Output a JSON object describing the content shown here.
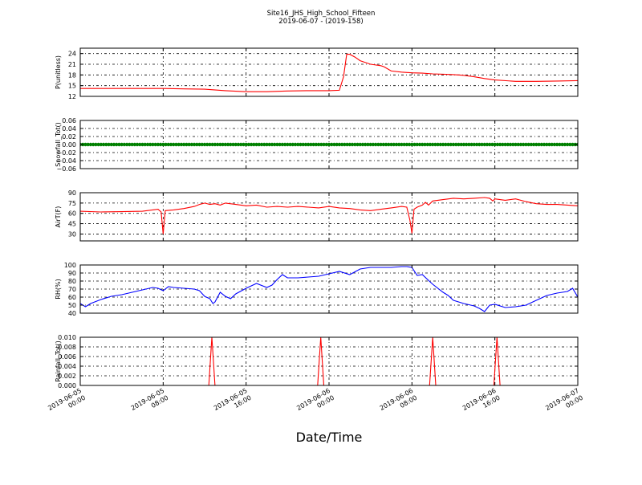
{
  "figure": {
    "title": "Site16_JHS_High_School_Fifteen",
    "subtitle": "2019-06-07 - (2019-158)",
    "xlabel": "Date/Time",
    "x_ticks": [
      [
        "2019-06-05",
        "00:00"
      ],
      [
        "2019-06-05",
        "08:00"
      ],
      [
        "2019-06-05",
        "16:00"
      ],
      [
        "2019-06-06",
        "00:00"
      ],
      [
        "2019-06-06",
        "08:00"
      ],
      [
        "2019-06-06",
        "16:00"
      ],
      [
        "2019-06-07",
        "00:00"
      ]
    ],
    "x_range_hours": [
      0,
      48
    ]
  },
  "chart_data": [
    {
      "type": "line",
      "ylabel": "P(unitless)",
      "ylim": [
        12,
        25.5
      ],
      "yticks": [
        12,
        15,
        18,
        21,
        24
      ],
      "ytick_labels": [
        "12",
        "15",
        "18",
        "21",
        "24"
      ],
      "grid": true,
      "series": [
        {
          "color": "#ff0000",
          "x": [
            0,
            8,
            10,
            12,
            14,
            16,
            18,
            20,
            22,
            24,
            25,
            25.4,
            25.7,
            26,
            26.5,
            27,
            28,
            29,
            29.3,
            30,
            31,
            32,
            33,
            34,
            35,
            36,
            37,
            38,
            39,
            40,
            42,
            44,
            46,
            48
          ],
          "y": [
            14.2,
            14.2,
            14.1,
            14.0,
            13.6,
            13.3,
            13.3,
            13.5,
            13.6,
            13.6,
            13.7,
            17.5,
            23.8,
            23.8,
            23.0,
            22.0,
            21.0,
            20.6,
            20.3,
            19.1,
            18.8,
            18.6,
            18.5,
            18.3,
            18.2,
            18.1,
            17.9,
            17.5,
            17.0,
            16.6,
            16.2,
            16.2,
            16.3,
            16.4
          ]
        }
      ]
    },
    {
      "type": "scatter",
      "ylabel": "Snowfall_Tot()",
      "ylim": [
        -0.06,
        0.06
      ],
      "yticks": [
        -0.06,
        -0.04,
        -0.02,
        0.0,
        0.02,
        0.04,
        0.06
      ],
      "ytick_labels": [
        "−0.06",
        "−0.04",
        "−0.02",
        "0.00",
        "0.02",
        "0.04",
        "0.06"
      ],
      "grid": true,
      "series": [
        {
          "color": "#008000",
          "x_start": 0,
          "x_end": 48,
          "x_step": 0.25,
          "constant_value": 0.0
        }
      ]
    },
    {
      "type": "line",
      "ylabel": "AirT(F)",
      "ylim": [
        20,
        90
      ],
      "yticks": [
        30,
        45,
        60,
        75,
        90
      ],
      "ytick_labels": [
        "30",
        "45",
        "60",
        "75",
        "90"
      ],
      "grid": true,
      "series": [
        {
          "color": "#ff0000",
          "x": [
            0,
            2,
            4,
            6,
            7.5,
            7.8,
            8.0,
            8.2,
            9,
            10,
            11,
            11.5,
            12,
            12.5,
            13,
            13.5,
            14,
            15,
            16,
            17,
            18,
            19,
            20,
            21,
            22,
            23,
            24,
            25,
            26,
            27,
            28,
            29,
            30,
            31,
            31.5,
            31.8,
            32.0,
            32.2,
            32.5,
            33,
            33.3,
            33.6,
            34,
            35,
            36,
            37,
            38,
            39,
            39.5,
            39.8,
            40,
            41,
            42,
            43,
            44,
            45,
            46,
            47,
            48
          ],
          "y": [
            63,
            62,
            62.5,
            63,
            66,
            62,
            30,
            64,
            65,
            67,
            70,
            73,
            75,
            73,
            74,
            72,
            75,
            73,
            71,
            72,
            69,
            70,
            69,
            70,
            69,
            68,
            70,
            68,
            67,
            65,
            64,
            66,
            68,
            70,
            69,
            50,
            31,
            66,
            69,
            72,
            76,
            72,
            78,
            80,
            82,
            81,
            82,
            83,
            82,
            78,
            81,
            79,
            81,
            77,
            74,
            73,
            73,
            72,
            71
          ]
        }
      ]
    },
    {
      "type": "line",
      "ylabel": "RH(%)",
      "ylim": [
        40,
        100
      ],
      "yticks": [
        40,
        50,
        60,
        70,
        80,
        90,
        100
      ],
      "ytick_labels": [
        "40",
        "50",
        "60",
        "70",
        "80",
        "90",
        "100"
      ],
      "grid": true,
      "series": [
        {
          "color": "#0000ff",
          "x": [
            0,
            0.5,
            1,
            2,
            3,
            4,
            5,
            6,
            7,
            7.5,
            8,
            8.5,
            9,
            10,
            11,
            11.5,
            12,
            12.5,
            12.8,
            13,
            13.5,
            14,
            14.5,
            15,
            16,
            16.5,
            17,
            18,
            18.5,
            19,
            19.5,
            20,
            21,
            22,
            23,
            24,
            25,
            26,
            27,
            28,
            29,
            30,
            31,
            31.5,
            32,
            32.5,
            33,
            33.5,
            34,
            35,
            35.5,
            36,
            37,
            38,
            38.5,
            39,
            39.5,
            40,
            41,
            42,
            43,
            44,
            45,
            46,
            47,
            47.5,
            48
          ],
          "y": [
            52,
            48,
            52,
            57,
            61,
            63,
            66,
            69,
            72,
            71,
            68,
            73,
            72,
            71,
            70,
            68,
            61,
            58,
            52,
            54,
            66,
            61,
            58,
            64,
            71,
            74,
            77,
            72,
            75,
            82,
            88,
            84,
            84,
            85,
            86,
            89,
            92,
            88,
            95,
            97,
            97,
            97,
            98,
            98,
            97,
            87,
            88,
            82,
            76,
            66,
            62,
            56,
            52,
            49,
            46,
            42,
            50,
            51,
            47,
            48,
            50,
            56,
            62,
            65,
            67,
            71,
            60
          ]
        }
      ]
    },
    {
      "type": "line",
      "ylabel": "Rainfall_Tot()",
      "ylim": [
        0,
        0.01
      ],
      "yticks": [
        0,
        0.002,
        0.004,
        0.006,
        0.008,
        0.01
      ],
      "ytick_labels": [
        "0.000",
        "0.002",
        "0.004",
        "0.006",
        "0.008",
        "0.010"
      ],
      "grid": true,
      "series": [
        {
          "color": "#ff0000",
          "x": [
            0,
            12.4,
            12.7,
            13.0,
            22.9,
            23.2,
            23.5,
            33.7,
            34.0,
            34.3,
            39.9,
            40.2,
            40.5,
            48
          ],
          "y": [
            0,
            0,
            0.01,
            0,
            0,
            0.01,
            0,
            0,
            0.01,
            0,
            0,
            0.01,
            0,
            0
          ]
        }
      ]
    }
  ]
}
